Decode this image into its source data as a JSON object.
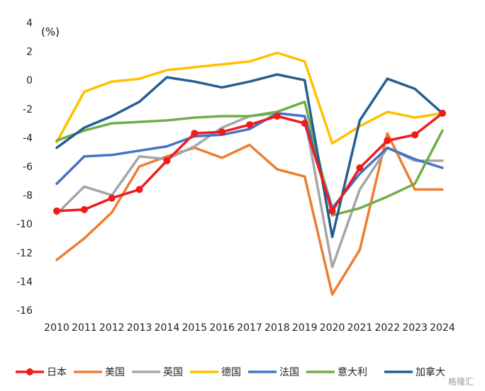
{
  "chart_data": {
    "type": "line",
    "unit_label": "(%)",
    "x": [
      "2010",
      "2011",
      "2012",
      "2013",
      "2014",
      "2015",
      "2016",
      "2017",
      "2018",
      "2019",
      "2020",
      "2021",
      "2022",
      "2023",
      "2024"
    ],
    "ylim": [
      -16,
      4
    ],
    "yticks": [
      "4",
      "2",
      "0",
      "-2",
      "-4",
      "-6",
      "-8",
      "-10",
      "-12",
      "-14",
      "-16"
    ],
    "grid": false,
    "legend_position": "bottom",
    "series": [
      {
        "name": "日本",
        "color": "#ee1c1c",
        "marker": "circle",
        "values": [
          -9.1,
          -9.0,
          -8.2,
          -7.6,
          -5.6,
          -3.7,
          -3.6,
          -3.1,
          -2.5,
          -3.0,
          -9.1,
          -6.1,
          -4.2,
          -3.8,
          -2.3
        ]
      },
      {
        "name": "美国",
        "color": "#ed7d31",
        "marker": "none",
        "values": [
          -12.5,
          -11.0,
          -9.2,
          -6.0,
          -5.3,
          -4.7,
          -5.4,
          -4.5,
          -6.2,
          -6.7,
          -14.9,
          -11.8,
          -3.7,
          -7.6,
          -7.6
        ]
      },
      {
        "name": "英国",
        "color": "#a5a5a5",
        "marker": "none",
        "values": [
          -9.3,
          -7.4,
          -8.0,
          -5.3,
          -5.5,
          -4.6,
          -3.3,
          -2.5,
          -2.3,
          -2.5,
          -13.0,
          -7.6,
          -4.7,
          -5.6,
          -5.6
        ]
      },
      {
        "name": "德国",
        "color": "#ffc000",
        "marker": "none",
        "values": [
          -4.3,
          -0.8,
          -0.1,
          0.1,
          0.7,
          0.9,
          1.1,
          1.3,
          1.9,
          1.3,
          -4.4,
          -3.2,
          -2.2,
          -2.6,
          -2.3
        ]
      },
      {
        "name": "法国",
        "color": "#4472c4",
        "marker": "none",
        "values": [
          -7.2,
          -5.3,
          -5.2,
          -4.9,
          -4.6,
          -3.9,
          -3.8,
          -3.4,
          -2.3,
          -2.5,
          -8.9,
          -6.5,
          -4.7,
          -5.5,
          -6.1
        ]
      },
      {
        "name": "意大利",
        "color": "#70ad47",
        "marker": "none",
        "values": [
          -4.2,
          -3.5,
          -3.0,
          -2.9,
          -2.8,
          -2.6,
          -2.5,
          -2.5,
          -2.2,
          -1.5,
          -9.4,
          -8.9,
          -8.1,
          -7.2,
          -3.5
        ]
      },
      {
        "name": "加拿大",
        "color": "#255e91",
        "marker": "none",
        "values": [
          -4.7,
          -3.3,
          -2.5,
          -1.5,
          0.2,
          -0.1,
          -0.5,
          -0.1,
          0.4,
          0.0,
          -10.9,
          -2.8,
          0.1,
          -0.6,
          -2.3
        ]
      }
    ]
  },
  "watermark": "格隆汇"
}
